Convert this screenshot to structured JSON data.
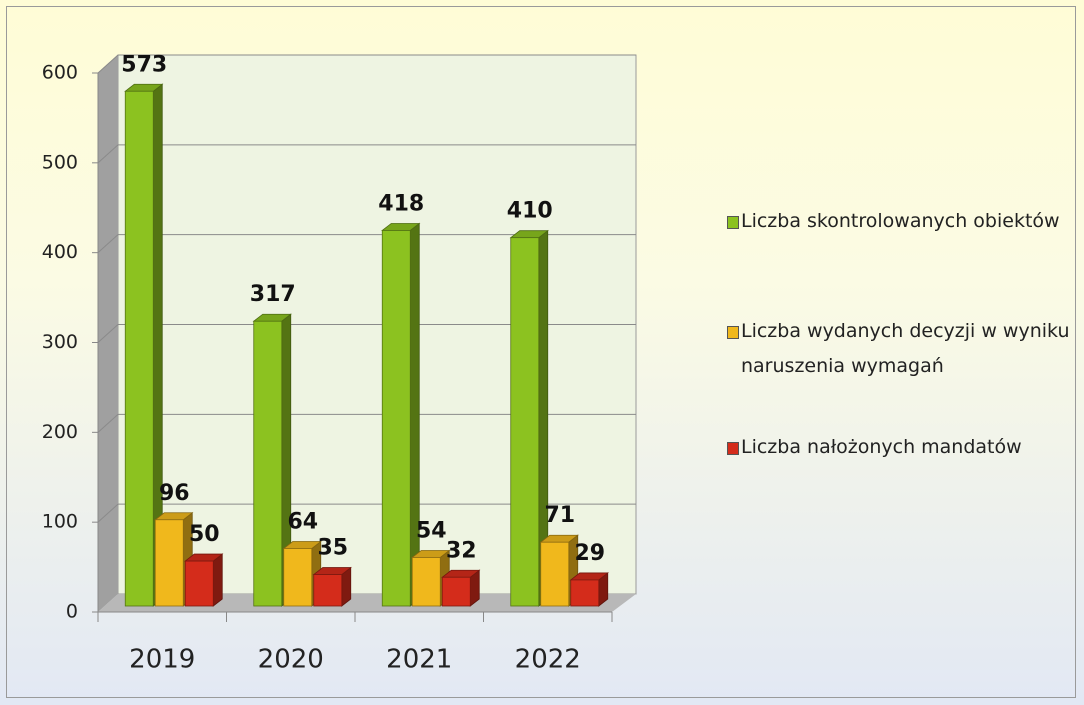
{
  "chart_data": {
    "type": "bar3d",
    "categories": [
      "2019",
      "2020",
      "2021",
      "2022"
    ],
    "series": [
      {
        "name": "Liczba skontrolowanych obiektów",
        "color": "#8cc220",
        "values": [
          573,
          317,
          418,
          410
        ]
      },
      {
        "name": "Liczba wydanych decyzji  w wyniku naruszenia wymagań",
        "color": "#f0b81c",
        "values": [
          96,
          64,
          54,
          71
        ]
      },
      {
        "name": "Liczba nałożonych mandatów",
        "color": "#d42c1b",
        "values": [
          50,
          35,
          32,
          29
        ]
      }
    ],
    "ylim": [
      0,
      600
    ],
    "yticks": [
      0,
      100,
      200,
      300,
      400,
      500,
      600
    ],
    "grid": true,
    "legend": "right"
  }
}
